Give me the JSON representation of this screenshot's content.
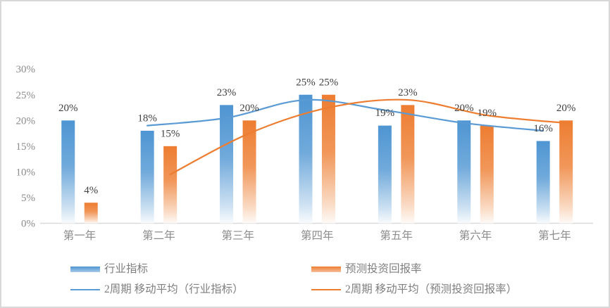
{
  "chart_data": {
    "type": "combo",
    "title": "",
    "categories": [
      "第一年",
      "第二年",
      "第三年",
      "第四年",
      "第五年",
      "第六年",
      "第七年"
    ],
    "yticks": [
      "0%",
      "5%",
      "10%",
      "15%",
      "20%",
      "25%",
      "30%"
    ],
    "ylim": [
      0,
      30
    ],
    "grid": false,
    "legend_position": "bottom",
    "series": [
      {
        "name": "行业指标",
        "type": "bar",
        "color": "#4E95D2",
        "values": [
          20,
          18,
          23,
          25,
          19,
          20,
          16
        ],
        "data_labels": [
          "20%",
          "18%",
          "23%",
          "25%",
          "19%",
          "20%",
          "16%"
        ]
      },
      {
        "name": "预测投资回报率",
        "type": "bar",
        "color": "#ED7D31",
        "values": [
          4,
          15,
          20,
          25,
          23,
          19,
          20
        ],
        "data_labels": [
          "4%",
          "15%",
          "20%",
          "25%",
          "23%",
          "19%",
          "20%"
        ]
      },
      {
        "name": "2周期 移动平均（行业指标）",
        "type": "line",
        "color": "#5B9BD5",
        "values": [
          null,
          19,
          20.5,
          24,
          22,
          19.5,
          18
        ]
      },
      {
        "name": "2周期 移动平均（预测投资回报率）",
        "type": "line",
        "color": "#ED7D31",
        "values": [
          null,
          9.5,
          17.5,
          22.5,
          24,
          21,
          19.5
        ]
      }
    ]
  },
  "legend": {
    "items": [
      {
        "label": "行业指标",
        "swatch": "bar",
        "color": "#4E95D2"
      },
      {
        "label": "预测投资回报率",
        "swatch": "bar",
        "color": "#ED7D31"
      },
      {
        "label": "2周期 移动平均（行业指标）",
        "swatch": "line",
        "color": "#5B9BD5"
      },
      {
        "label": "2周期 移动平均（预测投资回报率）",
        "swatch": "line",
        "color": "#ED7D31"
      }
    ]
  },
  "colors": {
    "axis_text": "#8C8C8C",
    "data_label": "#404040",
    "legend_text": "#7F7F7F",
    "axis_line": "#D9D9D9",
    "border": "#D8D8D8"
  }
}
